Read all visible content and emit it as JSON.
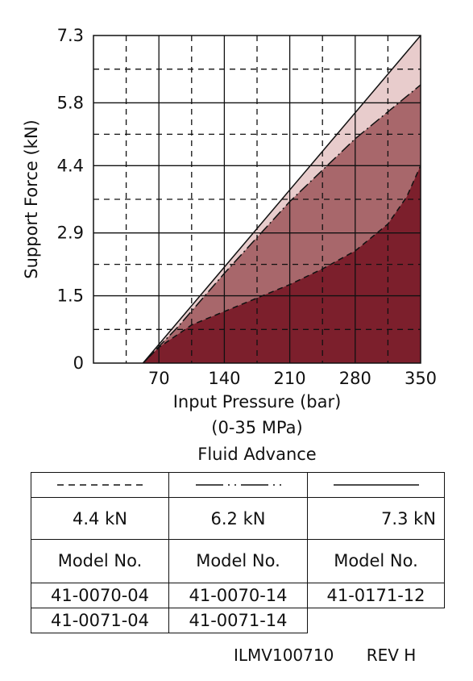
{
  "chart_data": {
    "type": "area",
    "xlabel": "Input Pressure (bar)",
    "xlabel_line2": "(0-35 MPa)",
    "xlabel_line3": "Fluid Advance",
    "ylabel": "Support Force (kN)",
    "xlim": [
      0,
      350
    ],
    "ylim": [
      0,
      7.3
    ],
    "x_ticks": [
      70,
      140,
      210,
      280,
      350
    ],
    "x_tick_labels": [
      "70",
      "140",
      "210",
      "280",
      "350"
    ],
    "y_ticks": [
      0,
      1.5,
      2.9,
      4.4,
      5.8,
      7.3
    ],
    "y_tick_labels": [
      "0",
      "1.5",
      "2.9",
      "4.4",
      "5.8",
      "7.3"
    ],
    "grid": true,
    "series": [
      {
        "name": "7.3 kN",
        "style": "solid",
        "color": "#e8cccc",
        "x": [
          53,
          350
        ],
        "y": [
          0,
          7.3
        ]
      },
      {
        "name": "6.2 kN",
        "style": "dash-dot",
        "color": "#a8676b",
        "x": [
          53,
          90,
          140,
          175,
          210,
          245,
          280,
          315,
          350
        ],
        "y": [
          0,
          0.8,
          2.0,
          2.8,
          3.6,
          4.3,
          5.0,
          5.6,
          6.2
        ]
      },
      {
        "name": "4.4 kN",
        "style": "dashed",
        "color": "#7c1f2c",
        "x": [
          53,
          70,
          105,
          140,
          175,
          210,
          245,
          280,
          315,
          335,
          350
        ],
        "y": [
          0,
          0.35,
          0.85,
          1.15,
          1.45,
          1.75,
          2.1,
          2.5,
          3.1,
          3.7,
          4.4
        ]
      }
    ]
  },
  "legend_table": {
    "headers": [
      {
        "kn": "4.4 kN",
        "style": "dashed"
      },
      {
        "kn": "6.2 kN",
        "style": "dash-dot"
      },
      {
        "kn": "7.3 kN",
        "style": "solid"
      }
    ],
    "model_label": "Model No.",
    "rows": [
      [
        "41-0070-04",
        "41-0070-14",
        "41-0171-12"
      ],
      [
        "41-0071-04",
        "41-0071-14",
        ""
      ]
    ]
  },
  "footer": {
    "code": "ILMV100710",
    "revision": "REV H"
  }
}
